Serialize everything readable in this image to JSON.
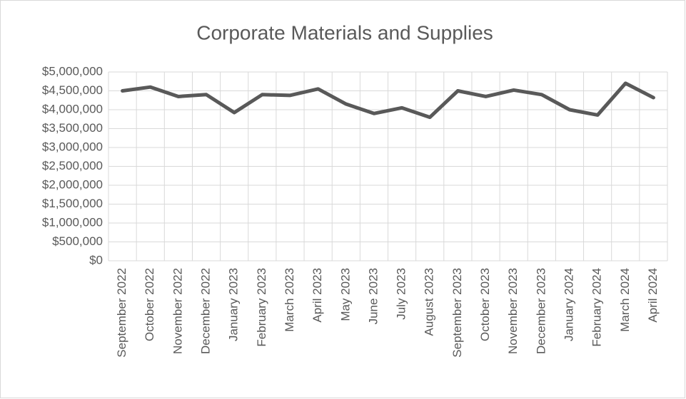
{
  "chart_data": {
    "type": "line",
    "title": "Corporate Materials and Supplies",
    "categories": [
      "September 2022",
      "October 2022",
      "November 2022",
      "December 2022",
      "January 2023",
      "February 2023",
      "March 2023",
      "April 2023",
      "May 2023",
      "June 2023",
      "July 2023",
      "August 2023",
      "September 2023",
      "October 2023",
      "November 2023",
      "December 2023",
      "January 2024",
      "February 2024",
      "March 2024",
      "April 2024"
    ],
    "values": [
      4500000,
      4600000,
      4350000,
      4400000,
      3925000,
      4400000,
      4380000,
      4550000,
      4150000,
      3900000,
      4050000,
      3800000,
      4500000,
      4350000,
      4520000,
      4400000,
      4000000,
      3860000,
      4700000,
      4320000
    ],
    "color": "#595959",
    "ylim": [
      0,
      5000000
    ],
    "yticks": [
      {
        "value": 0,
        "label": "$0"
      },
      {
        "value": 500000,
        "label": "$500,000"
      },
      {
        "value": 1000000,
        "label": "$1,000,000"
      },
      {
        "value": 1500000,
        "label": "$1,500,000"
      },
      {
        "value": 2000000,
        "label": "$2,000,000"
      },
      {
        "value": 2500000,
        "label": "$2,500,000"
      },
      {
        "value": 3000000,
        "label": "$3,000,000"
      },
      {
        "value": 3500000,
        "label": "$3,500,000"
      },
      {
        "value": 4000000,
        "label": "$4,000,000"
      },
      {
        "value": 4500000,
        "label": "$4,500,000"
      },
      {
        "value": 5000000,
        "label": "$5,000,000"
      }
    ],
    "grid": true
  }
}
